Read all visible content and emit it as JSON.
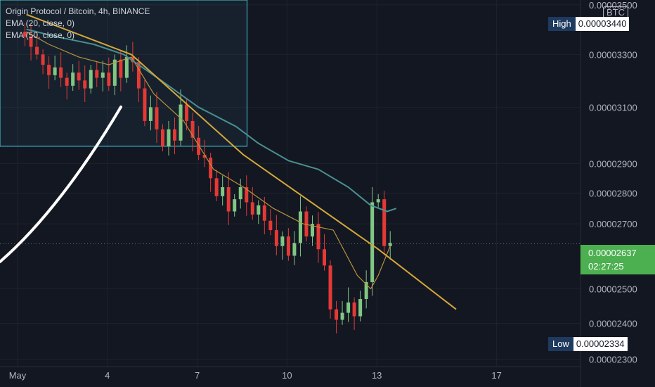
{
  "legend": {
    "title": "Origin Protocol / Bitcoin, 4h, BINANCE",
    "ema20": "EMA (20, close, 0)",
    "ema50": "EMA (50, close, 0)"
  },
  "currency_badge": "BTC",
  "high": {
    "label": "High",
    "value": "0.00003440"
  },
  "low": {
    "label": "Low",
    "value": "0.00002334"
  },
  "current": {
    "price": "0.00002637",
    "countdown": "02:27:25"
  },
  "colors": {
    "background": "#131722",
    "up": "#81c784",
    "down": "#e53935",
    "ema20": "#b8923b",
    "ema50": "#4a8f91",
    "trendline": "#d4a83a",
    "box": "#4dd0e1",
    "arrow": "#ffffff",
    "current_tag": "#4caf50"
  },
  "chart_data": {
    "type": "candlestick",
    "title": "Origin Protocol / Bitcoin, 4h, BINANCE",
    "interval": "4h",
    "quote": "BTC",
    "y_ticks": [
      "0.00003500",
      "0.00003300",
      "0.00003100",
      "0.00002900",
      "0.00002800",
      "0.00002700",
      "0.00002500",
      "0.00002400",
      "0.00002300"
    ],
    "x_ticks": [
      "May",
      "4",
      "7",
      "10",
      "13",
      "17"
    ],
    "ylim": [
      2.28e-05,
      3.52e-05
    ],
    "scale": "log",
    "x_range": [
      "May 1",
      "May 19"
    ],
    "series": [
      {
        "name": "EMA (20, close, 0)",
        "color": "#b8923b",
        "points": [
          [
            0.25,
            3.39e-05
          ],
          [
            1.0,
            3.34e-05
          ],
          [
            2.0,
            3.29e-05
          ],
          [
            3.0,
            3.26e-05
          ],
          [
            3.75,
            3.29e-05
          ],
          [
            4.5,
            3.15e-05
          ],
          [
            5.5,
            3.05e-05
          ],
          [
            6.5,
            2.88e-05
          ],
          [
            7.5,
            2.82e-05
          ],
          [
            8.5,
            2.75e-05
          ],
          [
            9.5,
            2.7e-05
          ],
          [
            10.5,
            2.68e-05
          ],
          [
            11.3,
            2.54e-05
          ],
          [
            11.75,
            2.5e-05
          ],
          [
            12.0,
            2.54e-05
          ],
          [
            12.4,
            2.63e-05
          ]
        ]
      },
      {
        "name": "EMA (50, close, 0)",
        "color": "#4a8f91",
        "points": [
          [
            0.25,
            3.4e-05
          ],
          [
            1.25,
            3.37e-05
          ],
          [
            2.5,
            3.34e-05
          ],
          [
            3.5,
            3.3e-05
          ],
          [
            4.75,
            3.2e-05
          ],
          [
            6.0,
            3.1e-05
          ],
          [
            7.25,
            3.03e-05
          ],
          [
            8.0,
            2.97e-05
          ],
          [
            9.0,
            2.91e-05
          ],
          [
            10.0,
            2.88e-05
          ],
          [
            11.0,
            2.82e-05
          ],
          [
            11.75,
            2.76e-05
          ],
          [
            12.3,
            2.74e-05
          ],
          [
            12.6,
            2.75e-05
          ]
        ]
      },
      {
        "name": "Trend line",
        "color": "#d4a83a",
        "points": [
          [
            0.25,
            3.46e-05
          ],
          [
            3.75,
            3.3e-05
          ],
          [
            7.5,
            2.93e-05
          ],
          [
            12.0,
            2.62e-05
          ],
          [
            14.6,
            2.44e-05
          ]
        ]
      }
    ],
    "selection_box": {
      "x": [
        0.0,
        7.5
      ],
      "y": [
        2.96e-05,
        3.52e-05
      ]
    },
    "current_price": 2.637e-05,
    "high": 3.44e-05,
    "low": 2.334e-05
  }
}
